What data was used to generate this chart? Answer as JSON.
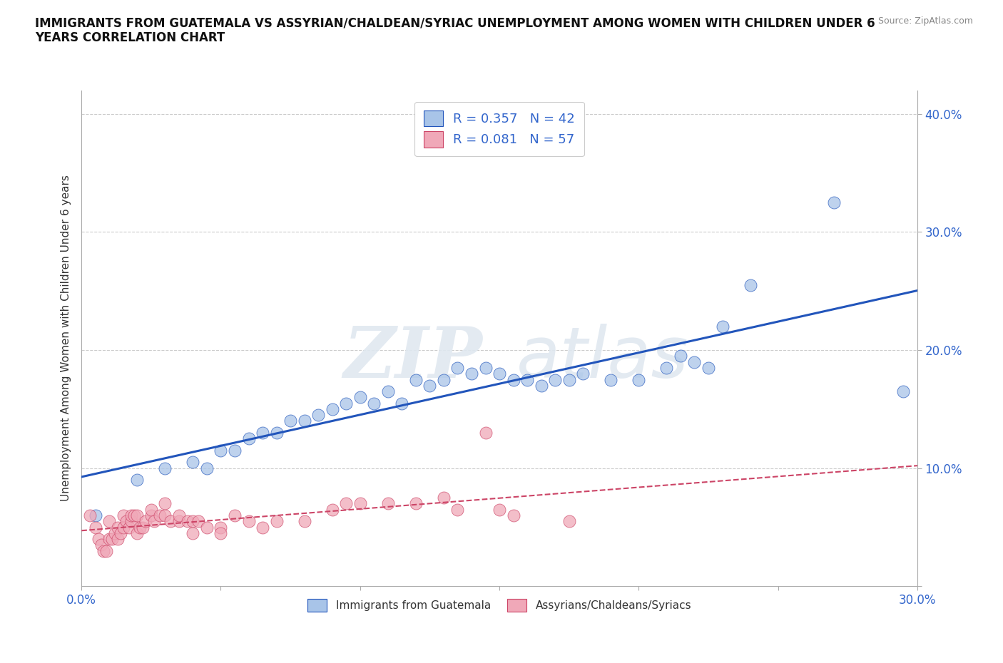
{
  "title": "IMMIGRANTS FROM GUATEMALA VS ASSYRIAN/CHALDEAN/SYRIAC UNEMPLOYMENT AMONG WOMEN WITH CHILDREN UNDER 6\nYEARS CORRELATION CHART",
  "source": "Source: ZipAtlas.com",
  "ylabel": "Unemployment Among Women with Children Under 6 years",
  "xlim": [
    0.0,
    0.3
  ],
  "ylim": [
    0.0,
    0.42
  ],
  "xticks": [
    0.0,
    0.05,
    0.1,
    0.15,
    0.2,
    0.25,
    0.3
  ],
  "yticks": [
    0.0,
    0.1,
    0.2,
    0.3,
    0.4
  ],
  "legend1_label": "Immigrants from Guatemala",
  "legend2_label": "Assyrians/Chaldeans/Syriacs",
  "r1": 0.357,
  "n1": 42,
  "r2": 0.081,
  "n2": 57,
  "blue_color": "#a8c4e8",
  "pink_color": "#f0a8b8",
  "blue_line_color": "#2255bb",
  "pink_line_color": "#cc4466",
  "blue_scatter_x": [
    0.005,
    0.02,
    0.03,
    0.04,
    0.045,
    0.05,
    0.055,
    0.06,
    0.065,
    0.07,
    0.075,
    0.08,
    0.085,
    0.09,
    0.095,
    0.1,
    0.105,
    0.11,
    0.115,
    0.12,
    0.125,
    0.13,
    0.135,
    0.14,
    0.145,
    0.15,
    0.155,
    0.16,
    0.165,
    0.17,
    0.175,
    0.18,
    0.19,
    0.2,
    0.21,
    0.215,
    0.22,
    0.225,
    0.23,
    0.24,
    0.27,
    0.295
  ],
  "blue_scatter_y": [
    0.06,
    0.09,
    0.1,
    0.105,
    0.1,
    0.115,
    0.115,
    0.125,
    0.13,
    0.13,
    0.14,
    0.14,
    0.145,
    0.15,
    0.155,
    0.16,
    0.155,
    0.165,
    0.155,
    0.175,
    0.17,
    0.175,
    0.185,
    0.18,
    0.185,
    0.18,
    0.175,
    0.175,
    0.17,
    0.175,
    0.175,
    0.18,
    0.175,
    0.175,
    0.185,
    0.195,
    0.19,
    0.185,
    0.22,
    0.255,
    0.325,
    0.165
  ],
  "pink_scatter_x": [
    0.003,
    0.005,
    0.006,
    0.007,
    0.008,
    0.009,
    0.01,
    0.01,
    0.011,
    0.012,
    0.013,
    0.013,
    0.014,
    0.015,
    0.015,
    0.016,
    0.017,
    0.018,
    0.018,
    0.019,
    0.02,
    0.02,
    0.021,
    0.022,
    0.023,
    0.025,
    0.025,
    0.026,
    0.028,
    0.03,
    0.03,
    0.032,
    0.035,
    0.035,
    0.038,
    0.04,
    0.04,
    0.042,
    0.045,
    0.05,
    0.05,
    0.055,
    0.06,
    0.065,
    0.07,
    0.08,
    0.09,
    0.095,
    0.1,
    0.11,
    0.12,
    0.13,
    0.135,
    0.145,
    0.15,
    0.155,
    0.175
  ],
  "pink_scatter_y": [
    0.06,
    0.05,
    0.04,
    0.035,
    0.03,
    0.03,
    0.055,
    0.04,
    0.04,
    0.045,
    0.04,
    0.05,
    0.045,
    0.05,
    0.06,
    0.055,
    0.05,
    0.055,
    0.06,
    0.06,
    0.06,
    0.045,
    0.05,
    0.05,
    0.055,
    0.06,
    0.065,
    0.055,
    0.06,
    0.06,
    0.07,
    0.055,
    0.055,
    0.06,
    0.055,
    0.055,
    0.045,
    0.055,
    0.05,
    0.05,
    0.045,
    0.06,
    0.055,
    0.05,
    0.055,
    0.055,
    0.065,
    0.07,
    0.07,
    0.07,
    0.07,
    0.075,
    0.065,
    0.13,
    0.065,
    0.06,
    0.055
  ]
}
